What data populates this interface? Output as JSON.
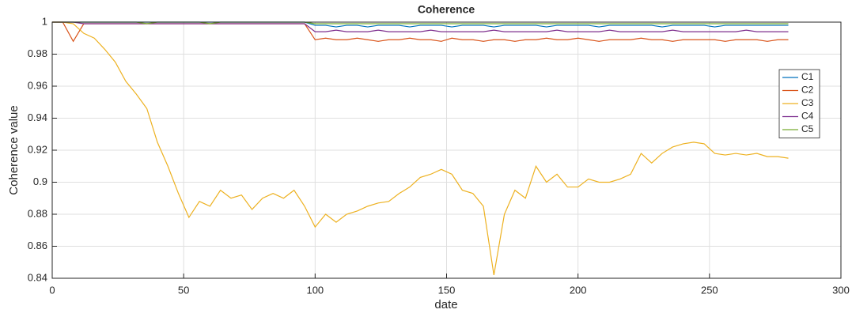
{
  "chart_data": {
    "type": "line",
    "title": "Coherence",
    "xlabel": "date",
    "ylabel": "Coherence value",
    "x": [
      0,
      4,
      8,
      12,
      16,
      20,
      24,
      28,
      32,
      36,
      40,
      44,
      48,
      52,
      56,
      60,
      64,
      68,
      72,
      76,
      80,
      84,
      88,
      92,
      96,
      100,
      104,
      108,
      112,
      116,
      120,
      124,
      128,
      132,
      136,
      140,
      144,
      148,
      152,
      156,
      160,
      164,
      168,
      172,
      176,
      180,
      184,
      188,
      192,
      196,
      200,
      204,
      208,
      212,
      216,
      220,
      224,
      228,
      232,
      236,
      240,
      244,
      248,
      252,
      256,
      260,
      264,
      268,
      272,
      276,
      280
    ],
    "series": [
      {
        "name": "C1",
        "color": "#0072BD",
        "values": [
          1,
          1,
          1,
          1,
          1,
          1,
          1,
          1,
          1,
          1,
          1,
          1,
          1,
          1,
          1,
          1,
          1,
          1,
          1,
          1,
          1,
          1,
          1,
          1,
          1,
          0.998,
          0.998,
          0.997,
          0.998,
          0.998,
          0.997,
          0.998,
          0.998,
          0.998,
          0.997,
          0.998,
          0.998,
          0.998,
          0.997,
          0.998,
          0.998,
          0.998,
          0.997,
          0.998,
          0.998,
          0.998,
          0.998,
          0.997,
          0.998,
          0.998,
          0.998,
          0.998,
          0.997,
          0.998,
          0.998,
          0.998,
          0.998,
          0.998,
          0.997,
          0.998,
          0.998,
          0.998,
          0.998,
          0.997,
          0.998,
          0.998,
          0.998,
          0.998,
          0.998,
          0.998,
          0.998
        ]
      },
      {
        "name": "C2",
        "color": "#D95319",
        "values": [
          1,
          1,
          0.988,
          0.999,
          0.999,
          0.999,
          0.999,
          0.999,
          0.999,
          0.999,
          0.999,
          0.999,
          0.999,
          0.999,
          0.999,
          0.999,
          0.999,
          0.999,
          0.999,
          0.999,
          0.999,
          0.999,
          0.999,
          0.999,
          0.999,
          0.989,
          0.99,
          0.989,
          0.989,
          0.99,
          0.989,
          0.988,
          0.989,
          0.989,
          0.99,
          0.989,
          0.989,
          0.988,
          0.99,
          0.989,
          0.989,
          0.988,
          0.989,
          0.989,
          0.988,
          0.989,
          0.989,
          0.99,
          0.989,
          0.989,
          0.99,
          0.989,
          0.988,
          0.989,
          0.989,
          0.989,
          0.99,
          0.989,
          0.989,
          0.988,
          0.989,
          0.989,
          0.989,
          0.989,
          0.988,
          0.989,
          0.989,
          0.989,
          0.988,
          0.989,
          0.989
        ]
      },
      {
        "name": "C3",
        "color": "#EDB120",
        "values": [
          1,
          1,
          0.999,
          0.993,
          0.99,
          0.983,
          0.975,
          0.963,
          0.955,
          0.946,
          0.925,
          0.91,
          0.893,
          0.878,
          0.888,
          0.885,
          0.895,
          0.89,
          0.892,
          0.883,
          0.89,
          0.893,
          0.89,
          0.895,
          0.885,
          0.872,
          0.88,
          0.875,
          0.88,
          0.882,
          0.885,
          0.887,
          0.888,
          0.893,
          0.897,
          0.903,
          0.905,
          0.908,
          0.905,
          0.895,
          0.893,
          0.885,
          0.842,
          0.88,
          0.895,
          0.89,
          0.91,
          0.9,
          0.905,
          0.897,
          0.897,
          0.902,
          0.9,
          0.9,
          0.902,
          0.905,
          0.918,
          0.912,
          0.918,
          0.922,
          0.924,
          0.925,
          0.924,
          0.918,
          0.917,
          0.918,
          0.917,
          0.918,
          0.916,
          0.916,
          0.915
        ]
      },
      {
        "name": "C4",
        "color": "#7E2F8E",
        "values": [
          1,
          1,
          1,
          0.999,
          0.999,
          0.999,
          0.999,
          0.999,
          0.999,
          0.999,
          0.999,
          0.999,
          0.999,
          0.999,
          0.999,
          0.999,
          0.999,
          0.999,
          0.999,
          0.999,
          0.999,
          0.999,
          0.999,
          0.999,
          0.999,
          0.994,
          0.994,
          0.995,
          0.994,
          0.994,
          0.994,
          0.995,
          0.994,
          0.994,
          0.994,
          0.994,
          0.995,
          0.994,
          0.994,
          0.994,
          0.994,
          0.994,
          0.995,
          0.994,
          0.994,
          0.994,
          0.994,
          0.994,
          0.995,
          0.994,
          0.994,
          0.994,
          0.994,
          0.995,
          0.994,
          0.994,
          0.994,
          0.994,
          0.994,
          0.995,
          0.994,
          0.994,
          0.994,
          0.994,
          0.994,
          0.994,
          0.995,
          0.994,
          0.994,
          0.994,
          0.994
        ]
      },
      {
        "name": "C5",
        "color": "#77AC30",
        "values": [
          1,
          1,
          1,
          1,
          1,
          1,
          1,
          1,
          1,
          0.999,
          1,
          1,
          1,
          1,
          1,
          0.999,
          1,
          1,
          1,
          1,
          1,
          1,
          1,
          1,
          1,
          0.999,
          0.999,
          0.999,
          0.999,
          0.999,
          0.999,
          0.999,
          0.999,
          0.999,
          0.999,
          0.999,
          0.999,
          0.999,
          0.999,
          0.999,
          0.999,
          0.999,
          0.999,
          0.999,
          0.999,
          0.999,
          0.999,
          0.999,
          0.999,
          0.999,
          0.999,
          0.999,
          0.999,
          0.999,
          0.999,
          0.999,
          0.999,
          0.999,
          0.999,
          0.999,
          0.999,
          0.999,
          0.999,
          0.999,
          0.999,
          0.999,
          0.999,
          0.999,
          0.999,
          0.999,
          0.999
        ]
      }
    ],
    "xlim": [
      0,
      300
    ],
    "xticks": [
      0,
      50,
      100,
      150,
      200,
      250,
      300
    ],
    "ylim": [
      0.84,
      1
    ],
    "yticks": [
      0.84,
      0.86,
      0.88,
      0.9,
      0.92,
      0.94,
      0.96,
      0.98,
      1
    ],
    "grid": true,
    "legend": "right"
  }
}
